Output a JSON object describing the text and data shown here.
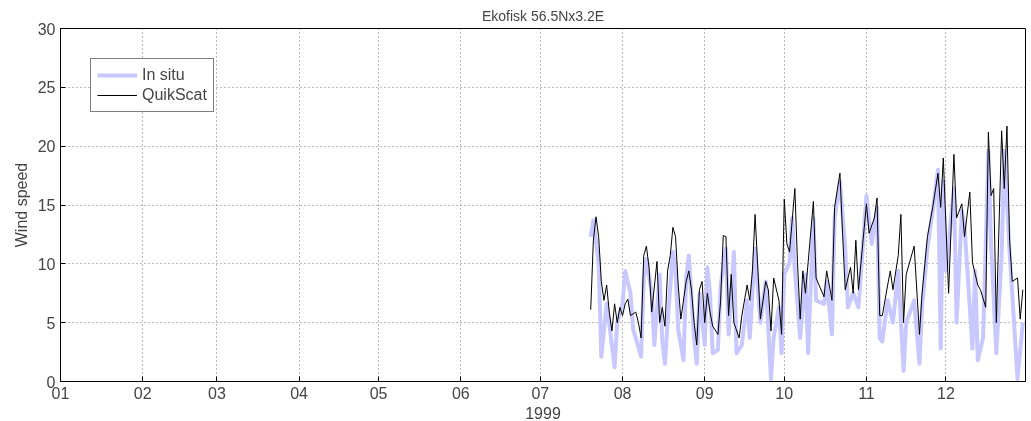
{
  "chart_data": {
    "type": "line",
    "title": "Ekofisk 56.5Nx3.2E",
    "xlabel": "1999",
    "ylabel": "Wind speed",
    "xlim": [
      "1999-01-01",
      "1999-12-31"
    ],
    "xticks": [
      {
        "value": "1999-01-01",
        "label": "01"
      },
      {
        "value": "1999-02-01",
        "label": "02"
      },
      {
        "value": "1999-03-01",
        "label": "03"
      },
      {
        "value": "1999-04-01",
        "label": "04"
      },
      {
        "value": "1999-05-01",
        "label": "05"
      },
      {
        "value": "1999-06-01",
        "label": "06"
      },
      {
        "value": "1999-07-01",
        "label": "07"
      },
      {
        "value": "1999-08-01",
        "label": "08"
      },
      {
        "value": "1999-09-01",
        "label": "09"
      },
      {
        "value": "1999-10-01",
        "label": "10"
      },
      {
        "value": "1999-11-01",
        "label": "11"
      },
      {
        "value": "1999-12-01",
        "label": "12"
      }
    ],
    "ylim": [
      0,
      30
    ],
    "yticks": [
      0,
      5,
      10,
      15,
      20,
      25,
      30
    ],
    "grid": true,
    "legend": "top left",
    "series": [
      {
        "name": "In situ",
        "color": "#c8c8ff",
        "x": [
          "1999-07-20",
          "1999-07-21",
          "1999-07-23",
          "1999-07-24",
          "1999-07-26",
          "1999-07-28",
          "1999-07-29",
          "1999-07-30",
          "1999-08-01",
          "1999-08-02",
          "1999-08-04",
          "1999-08-05",
          "1999-08-06",
          "1999-08-08",
          "1999-08-09",
          "1999-08-10",
          "1999-08-12",
          "1999-08-13",
          "1999-08-15",
          "1999-08-16",
          "1999-08-17",
          "1999-08-18",
          "1999-08-20",
          "1999-08-21",
          "1999-08-22",
          "1999-08-24",
          "1999-08-25",
          "1999-08-26",
          "1999-08-28",
          "1999-08-29",
          "1999-08-30",
          "1999-09-01",
          "1999-09-02",
          "1999-09-03",
          "1999-09-04",
          "1999-09-06",
          "1999-09-07",
          "1999-09-09",
          "1999-09-10",
          "1999-09-12",
          "1999-09-13",
          "1999-09-15",
          "1999-09-17",
          "1999-09-18",
          "1999-09-20",
          "1999-09-22",
          "1999-09-24",
          "1999-09-26",
          "1999-09-27",
          "1999-09-29",
          "1999-09-30",
          "1999-10-01",
          "1999-10-03",
          "1999-10-04",
          "1999-10-05",
          "1999-10-07",
          "1999-10-09",
          "1999-10-10",
          "1999-10-12",
          "1999-10-13",
          "1999-10-16",
          "1999-10-17",
          "1999-10-19",
          "1999-10-20",
          "1999-10-22",
          "1999-10-24",
          "1999-10-25",
          "1999-10-27",
          "1999-10-29",
          "1999-11-01",
          "1999-11-03",
          "1999-11-05",
          "1999-11-06",
          "1999-11-07",
          "1999-11-09",
          "1999-11-11",
          "1999-11-13",
          "1999-11-15",
          "1999-11-16",
          "1999-11-19",
          "1999-11-21",
          "1999-11-22",
          "1999-11-24",
          "1999-11-26",
          "1999-11-28",
          "1999-11-29",
          "1999-11-30",
          "1999-12-01",
          "1999-12-04",
          "1999-12-05",
          "1999-12-07",
          "1999-12-08",
          "1999-12-11",
          "1999-12-12",
          "1999-12-13",
          "1999-12-15",
          "1999-12-17",
          "1999-12-18",
          "1999-12-20",
          "1999-12-22",
          "1999-12-23",
          "1999-12-25",
          "1999-12-26",
          "1999-12-28",
          "1999-12-30"
        ],
        "values": [
          12.3,
          13.7,
          10.1,
          2.1,
          6.6,
          3.1,
          1.2,
          5.0,
          6.6,
          9.4,
          7.5,
          4.4,
          3.7,
          2.1,
          8.8,
          10.4,
          7.5,
          3.1,
          9.1,
          3.4,
          1.5,
          5.0,
          11.0,
          9.4,
          4.4,
          1.8,
          8.8,
          10.7,
          3.7,
          1.5,
          7.5,
          3.1,
          9.7,
          7.5,
          2.4,
          2.7,
          8.2,
          11.3,
          4.0,
          11.0,
          2.4,
          3.1,
          6.9,
          3.7,
          11.3,
          5.0,
          8.5,
          0.2,
          3.7,
          6.3,
          2.4,
          9.1,
          10.1,
          13.9,
          9.4,
          3.7,
          9.1,
          2.4,
          13.9,
          6.9,
          6.6,
          8.5,
          4.0,
          13.9,
          17.0,
          11.3,
          6.3,
          7.5,
          6.3,
          15.8,
          11.7,
          14.8,
          3.7,
          3.4,
          6.9,
          5.0,
          9.4,
          0.9,
          5.0,
          6.9,
          1.5,
          6.3,
          11.3,
          14.5,
          18.0,
          2.8,
          17.0,
          9.4,
          16.4,
          5.0,
          14.5,
          13.2,
          2.8,
          9.4,
          1.8,
          3.7,
          19.6,
          11.7,
          2.4,
          10.7,
          19.6,
          11.0,
          7.5,
          0.2,
          5.0
        ]
      },
      {
        "name": "QuikScat",
        "color": "#000000",
        "x": [
          "1999-07-20",
          "1999-07-21",
          "1999-07-22",
          "1999-07-23",
          "1999-07-24",
          "1999-07-25",
          "1999-07-26",
          "1999-07-27",
          "1999-07-28",
          "1999-07-29",
          "1999-07-30",
          "1999-07-31",
          "1999-08-01",
          "1999-08-02",
          "1999-08-03",
          "1999-08-04",
          "1999-08-06",
          "1999-08-07",
          "1999-08-08",
          "1999-08-09",
          "1999-08-10",
          "1999-08-11",
          "1999-08-12",
          "1999-08-14",
          "1999-08-15",
          "1999-08-16",
          "1999-08-17",
          "1999-08-18",
          "1999-08-19",
          "1999-08-20",
          "1999-08-21",
          "1999-08-22",
          "1999-08-23",
          "1999-08-25",
          "1999-08-26",
          "1999-08-27",
          "1999-08-28",
          "1999-08-29",
          "1999-08-30",
          "1999-08-31",
          "1999-09-01",
          "1999-09-02",
          "1999-09-03",
          "1999-09-04",
          "1999-09-06",
          "1999-09-07",
          "1999-09-08",
          "1999-09-09",
          "1999-09-10",
          "1999-09-11",
          "1999-09-12",
          "1999-09-14",
          "1999-09-15",
          "1999-09-17",
          "1999-09-18",
          "1999-09-19",
          "1999-09-20",
          "1999-09-22",
          "1999-09-24",
          "1999-09-25",
          "1999-09-26",
          "1999-09-27",
          "1999-09-29",
          "1999-09-30",
          "1999-10-01",
          "1999-10-02",
          "1999-10-03",
          "1999-10-05",
          "1999-10-06",
          "1999-10-07",
          "1999-10-08",
          "1999-10-09",
          "1999-10-10",
          "1999-10-12",
          "1999-10-13",
          "1999-10-16",
          "1999-10-17",
          "1999-10-19",
          "1999-10-20",
          "1999-10-22",
          "1999-10-23",
          "1999-10-24",
          "1999-10-26",
          "1999-10-27",
          "1999-10-28",
          "1999-10-29",
          "1999-11-01",
          "1999-11-02",
          "1999-11-04",
          "1999-11-05",
          "1999-11-06",
          "1999-11-07",
          "1999-11-09",
          "1999-11-10",
          "1999-11-11",
          "1999-11-13",
          "1999-11-14",
          "1999-11-15",
          "1999-11-16",
          "1999-11-19",
          "1999-11-21",
          "1999-11-22",
          "1999-11-24",
          "1999-11-26",
          "1999-11-28",
          "1999-11-29",
          "1999-11-30",
          "1999-12-01",
          "1999-12-02",
          "1999-12-04",
          "1999-12-05",
          "1999-12-07",
          "1999-12-08",
          "1999-12-10",
          "1999-12-11",
          "1999-12-13",
          "1999-12-14",
          "1999-12-16",
          "1999-12-17",
          "1999-12-18",
          "1999-12-19",
          "1999-12-20",
          "1999-12-22",
          "1999-12-23",
          "1999-12-24",
          "1999-12-25",
          "1999-12-26",
          "1999-12-28",
          "1999-12-29",
          "1999-12-30"
        ],
        "values": [
          6.1,
          12.0,
          14.0,
          12.3,
          8.5,
          6.9,
          8.2,
          5.9,
          4.3,
          6.6,
          5.0,
          6.3,
          5.6,
          6.6,
          7.0,
          5.6,
          5.9,
          5.0,
          3.7,
          10.7,
          11.5,
          9.7,
          5.9,
          10.2,
          5.0,
          6.3,
          4.7,
          9.4,
          10.7,
          13.1,
          12.3,
          8.2,
          5.3,
          8.5,
          9.4,
          7.8,
          5.0,
          3.1,
          7.8,
          8.5,
          5.0,
          7.5,
          5.9,
          4.7,
          4.0,
          6.9,
          12.4,
          12.3,
          5.6,
          9.1,
          5.0,
          3.7,
          5.6,
          8.2,
          6.9,
          9.4,
          14.2,
          5.3,
          8.5,
          7.8,
          4.3,
          8.8,
          6.9,
          4.0,
          15.5,
          11.7,
          11.0,
          16.4,
          10.1,
          5.3,
          9.4,
          7.5,
          10.1,
          15.3,
          8.8,
          7.2,
          9.4,
          6.9,
          14.8,
          17.7,
          12.6,
          7.8,
          9.7,
          7.5,
          12.0,
          7.8,
          15.1,
          12.6,
          13.9,
          15.6,
          5.6,
          5.6,
          8.2,
          9.4,
          7.8,
          10.7,
          14.2,
          5.0,
          9.1,
          11.5,
          4.0,
          7.5,
          12.3,
          14.8,
          17.7,
          14.8,
          19.0,
          13.2,
          7.5,
          19.3,
          13.9,
          15.1,
          12.3,
          16.1,
          10.1,
          8.2,
          7.8,
          6.3,
          21.2,
          15.8,
          16.4,
          5.0,
          21.3,
          16.4,
          21.7,
          12.0,
          8.5,
          8.8,
          5.3,
          7.8
        ]
      }
    ]
  }
}
